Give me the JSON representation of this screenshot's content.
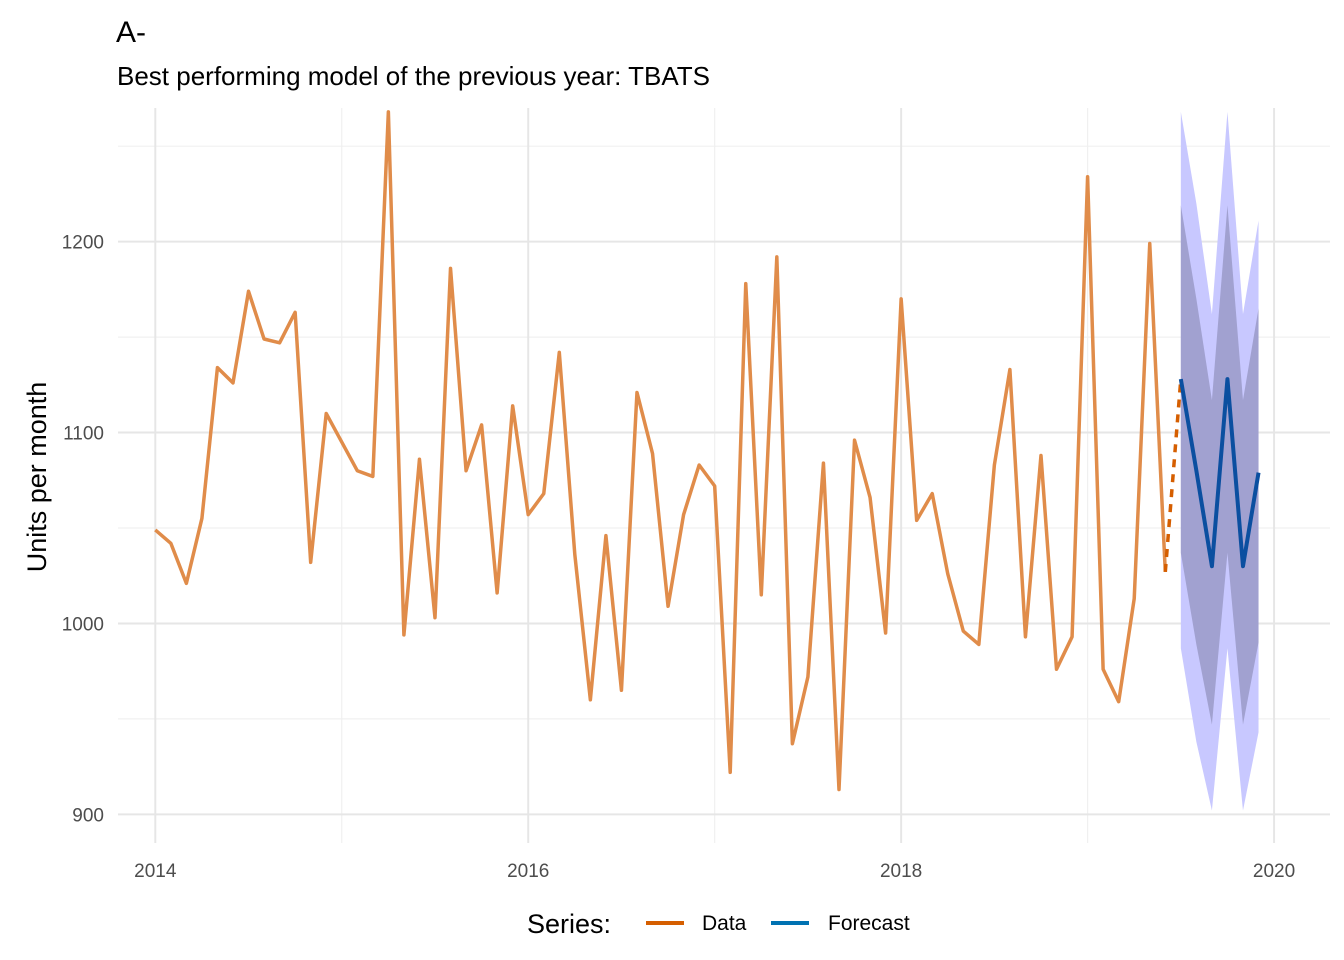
{
  "chart_data": {
    "type": "line",
    "title": "A-",
    "subtitle": "Best performing model of the previous year: TBATS",
    "xlabel": "",
    "ylabel": "Units per month",
    "xlim": [
      2013.8,
      2020.3
    ],
    "ylim": [
      885,
      1270
    ],
    "x_ticks": [
      2014,
      2016,
      2018,
      2020
    ],
    "y_ticks": [
      900,
      1000,
      1100,
      1200
    ],
    "grid": true,
    "legend": {
      "title": "Series:",
      "position": "bottom"
    },
    "colors": {
      "data": "#e08c4a",
      "data_dashed": "#d55e00",
      "forecast": "#0b4fa0",
      "forecast_legend": "#0072b2",
      "ci95": "#c8c8ff",
      "ci80": "#9a9ac8"
    },
    "series": [
      {
        "name": "Data",
        "x": [
          2014.0,
          2014.0833,
          2014.1667,
          2014.25,
          2014.3333,
          2014.4167,
          2014.5,
          2014.5833,
          2014.6667,
          2014.75,
          2014.8333,
          2014.9167,
          2015.0,
          2015.0833,
          2015.1667,
          2015.25,
          2015.3333,
          2015.4167,
          2015.5,
          2015.5833,
          2015.6667,
          2015.75,
          2015.8333,
          2015.9167,
          2016.0,
          2016.0833,
          2016.1667,
          2016.25,
          2016.3333,
          2016.4167,
          2016.5,
          2016.5833,
          2016.6667,
          2016.75,
          2016.8333,
          2016.9167,
          2017.0,
          2017.0833,
          2017.1667,
          2017.25,
          2017.3333,
          2017.4167,
          2017.5,
          2017.5833,
          2017.6667,
          2017.75,
          2017.8333,
          2017.9167,
          2018.0,
          2018.0833,
          2018.1667,
          2018.25,
          2018.3333,
          2018.4167,
          2018.5,
          2018.5833,
          2018.6667,
          2018.75,
          2018.8333,
          2018.9167,
          2019.0,
          2019.0833,
          2019.1667,
          2019.25,
          2019.3333,
          2019.4167
        ],
        "values": [
          1049,
          1042,
          1021,
          1055,
          1134,
          1126,
          1174,
          1149,
          1147,
          1163,
          1032,
          1110,
          1095,
          1080,
          1077,
          1268,
          994,
          1086,
          1003,
          1186,
          1080,
          1104,
          1016,
          1114,
          1057,
          1068,
          1142,
          1036,
          960,
          1046,
          965,
          1121,
          1089,
          1009,
          1057,
          1083,
          1072,
          922,
          1178,
          1015,
          1192,
          937,
          972,
          1084,
          913,
          1096,
          1066,
          995,
          1170,
          1054,
          1068,
          1026,
          996,
          989,
          1083,
          1133,
          993,
          1088,
          976,
          993,
          1234,
          976,
          959,
          1013,
          1199,
          1027
        ]
      },
      {
        "name": "Forecast",
        "x": [
          2019.5,
          2019.5833,
          2019.6667,
          2019.75,
          2019.8333,
          2019.9167
        ],
        "values": [
          1128,
          1080,
          1030,
          1128,
          1030,
          1079
        ],
        "lower80": [
          1037,
          989,
          947,
          1037,
          947,
          990
        ],
        "upper80": [
          1219,
          1170,
          1117,
          1219,
          1117,
          1165
        ],
        "lower95": [
          987,
          938,
          902,
          987,
          902,
          943
        ],
        "upper95": [
          1268,
          1220,
          1162,
          1268,
          1162,
          1211
        ]
      }
    ]
  }
}
